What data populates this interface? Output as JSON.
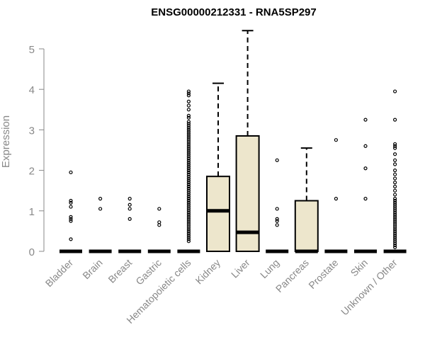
{
  "chart_data": {
    "type": "box",
    "title": "ENSG00000212331 - RNA5SP297",
    "xlabel": "",
    "ylabel": "Expression",
    "ylim": [
      0,
      5.5
    ],
    "yticks": [
      0,
      1,
      2,
      3,
      4,
      5
    ],
    "colors": {
      "box_fill": "#ede6cc",
      "axis": "#888888",
      "stroke": "#000000"
    },
    "categories": [
      {
        "name": "Bladder",
        "q1": 0,
        "median": 0,
        "q3": 0,
        "whisker_low": 0,
        "whisker_high": 0,
        "outliers": [
          0.3,
          0.75,
          0.8,
          0.85,
          1.1,
          1.2,
          1.25,
          1.95
        ]
      },
      {
        "name": "Brain",
        "q1": 0,
        "median": 0,
        "q3": 0,
        "whisker_low": 0,
        "whisker_high": 0,
        "outliers": [
          1.05,
          1.3
        ]
      },
      {
        "name": "Breast",
        "q1": 0,
        "median": 0,
        "q3": 0,
        "whisker_low": 0,
        "whisker_high": 0,
        "outliers": [
          0.8,
          1.05,
          1.15,
          1.3
        ]
      },
      {
        "name": "Gastric",
        "q1": 0,
        "median": 0,
        "q3": 0,
        "whisker_low": 0,
        "whisker_high": 0,
        "outliers": [
          0.65,
          0.72,
          1.05
        ]
      },
      {
        "name": "Hematopoietic cells",
        "q1": 0,
        "median": 0,
        "q3": 0,
        "whisker_low": 0,
        "whisker_high": 0,
        "outliers": [
          0.25,
          0.3,
          0.35,
          0.4,
          0.45,
          0.5,
          0.55,
          0.6,
          0.65,
          0.7,
          0.75,
          0.8,
          0.85,
          0.9,
          0.95,
          1.0,
          1.05,
          1.1,
          1.15,
          1.2,
          1.25,
          1.3,
          1.35,
          1.4,
          1.45,
          1.5,
          1.55,
          1.6,
          1.65,
          1.7,
          1.75,
          1.8,
          1.85,
          1.9,
          1.95,
          2.0,
          2.05,
          2.1,
          2.15,
          2.2,
          2.25,
          2.3,
          2.35,
          2.4,
          2.45,
          2.5,
          2.55,
          2.6,
          2.65,
          2.7,
          2.75,
          2.8,
          2.85,
          2.9,
          2.95,
          3.0,
          3.05,
          3.1,
          3.15,
          3.2,
          3.3,
          3.35,
          3.5,
          3.6,
          3.7,
          3.85,
          3.9,
          3.95
        ]
      },
      {
        "name": "Kidney",
        "q1": 0,
        "median": 1.0,
        "q3": 1.85,
        "whisker_low": 0,
        "whisker_high": 4.15,
        "outliers": []
      },
      {
        "name": "Liver",
        "q1": 0,
        "median": 0.47,
        "q3": 2.85,
        "whisker_low": 0,
        "whisker_high": 5.45,
        "outliers": []
      },
      {
        "name": "Lung",
        "q1": 0,
        "median": 0,
        "q3": 0,
        "whisker_low": 0,
        "whisker_high": 0,
        "outliers": [
          0.65,
          0.75,
          0.8,
          1.05,
          2.25
        ]
      },
      {
        "name": "Pancreas",
        "q1": 0,
        "median": 0,
        "q3": 1.25,
        "whisker_low": 0,
        "whisker_high": 2.55,
        "outliers": []
      },
      {
        "name": "Prostate",
        "q1": 0,
        "median": 0,
        "q3": 0,
        "whisker_low": 0,
        "whisker_high": 0,
        "outliers": [
          1.3,
          2.75
        ]
      },
      {
        "name": "Skin",
        "q1": 0,
        "median": 0,
        "q3": 0,
        "whisker_low": 0,
        "whisker_high": 0,
        "outliers": [
          1.3,
          2.05,
          2.6,
          3.25
        ]
      },
      {
        "name": "Unknown / Other",
        "q1": 0,
        "median": 0,
        "q3": 0,
        "whisker_low": 0,
        "whisker_high": 0,
        "outliers": [
          0.1,
          0.15,
          0.2,
          0.25,
          0.3,
          0.35,
          0.4,
          0.45,
          0.5,
          0.55,
          0.6,
          0.65,
          0.7,
          0.75,
          0.8,
          0.85,
          0.9,
          0.95,
          1.0,
          1.05,
          1.1,
          1.15,
          1.2,
          1.25,
          1.3,
          1.4,
          1.5,
          1.6,
          1.7,
          1.8,
          1.9,
          2.0,
          2.15,
          2.25,
          2.4,
          2.55,
          2.6,
          2.65,
          3.25,
          3.95
        ]
      }
    ]
  }
}
